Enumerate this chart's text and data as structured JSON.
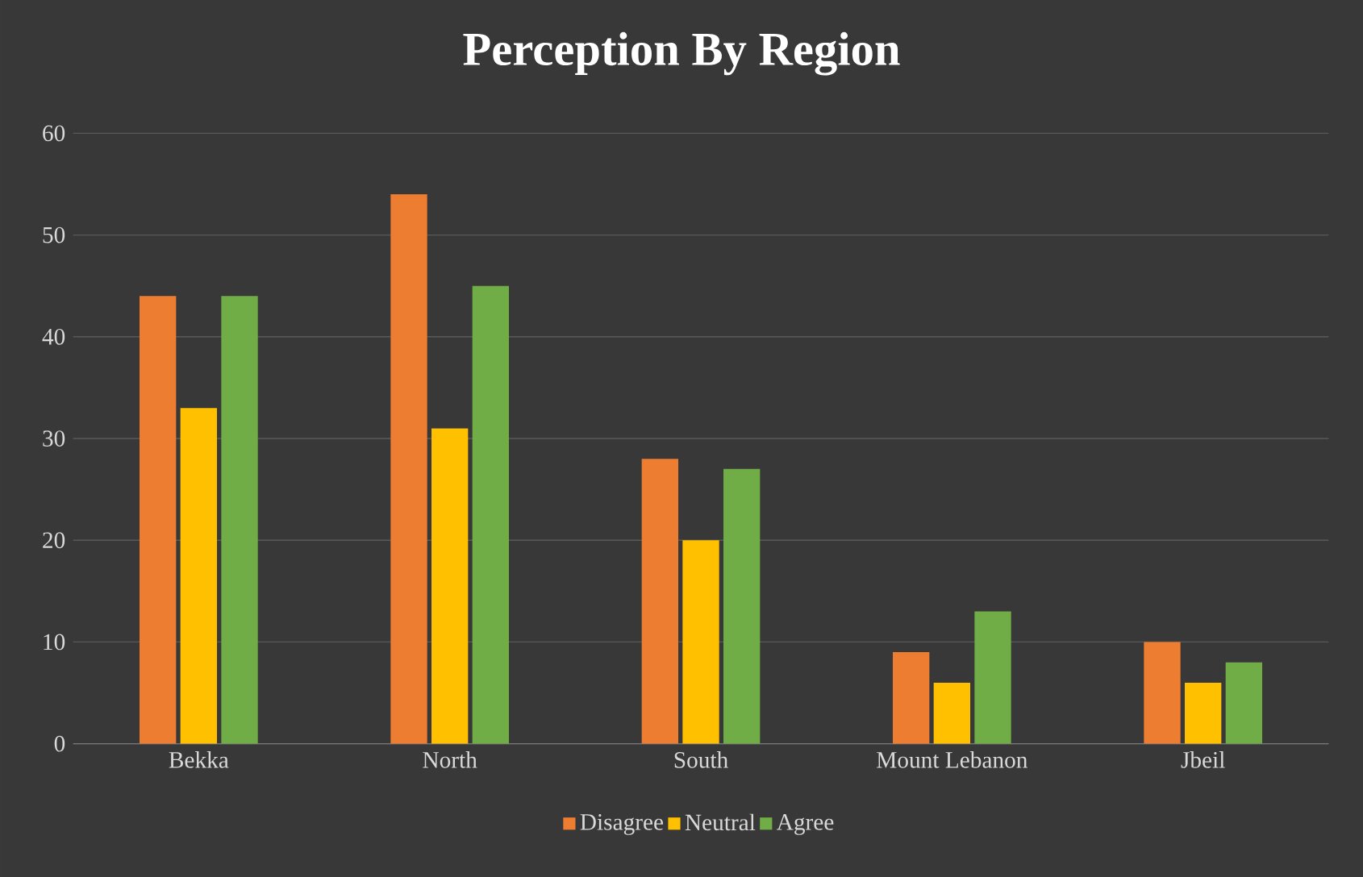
{
  "chart_data": {
    "type": "bar",
    "title": "Perception By Region",
    "categories": [
      "Bekka",
      "North",
      "South",
      "Mount Lebanon",
      "Jbeil"
    ],
    "series": [
      {
        "name": "Disagree",
        "color": "#ed7d31",
        "values": [
          44,
          54,
          28,
          9,
          10
        ]
      },
      {
        "name": "Neutral",
        "color": "#ffc000",
        "values": [
          33,
          31,
          20,
          6,
          6
        ]
      },
      {
        "name": "Agree",
        "color": "#70ad47",
        "values": [
          44,
          45,
          27,
          13,
          8
        ]
      }
    ],
    "ylim": [
      0,
      60
    ],
    "yticks": [
      0,
      10,
      20,
      30,
      40,
      50,
      60
    ],
    "grid": "y",
    "legend": "bottom"
  }
}
